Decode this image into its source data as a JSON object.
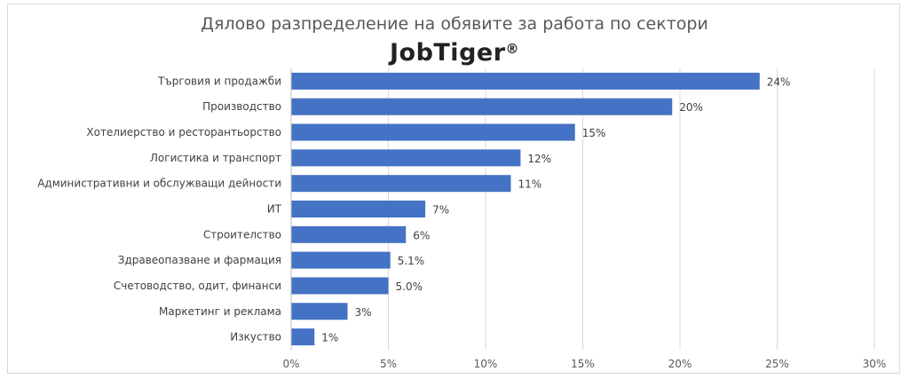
{
  "chart_data": {
    "type": "bar",
    "orientation": "horizontal",
    "title": "Дялово разпределение на обявите за работа по сектори",
    "logo_text": "JobTiger",
    "logo_mark": "®",
    "categories": [
      "Търговия и продажби",
      "Производство",
      "Хотелиерство и ресторантьорство",
      "Логистика и транспорт",
      "Административни и обслужващи дейности",
      "ИТ",
      "Строителство",
      "Здравеопазване и фармация",
      "Счетоводство, одит, финанси",
      "Маркетинг и реклама",
      "Изкуство"
    ],
    "values": [
      24.1,
      19.6,
      14.6,
      11.8,
      11.3,
      6.9,
      5.9,
      5.1,
      5.0,
      2.9,
      1.2
    ],
    "value_labels": [
      "24%",
      "20%",
      "15%",
      "12%",
      "11%",
      "7%",
      "6%",
      "5.1%",
      "5.0%",
      "3%",
      "1%"
    ],
    "xlim": [
      0,
      30
    ],
    "xticks": [
      "0%",
      "5%",
      "10%",
      "15%",
      "20%",
      "25%",
      "30%"
    ],
    "grid": "vertical",
    "legend": "none",
    "bar_color": "#4472c4"
  }
}
